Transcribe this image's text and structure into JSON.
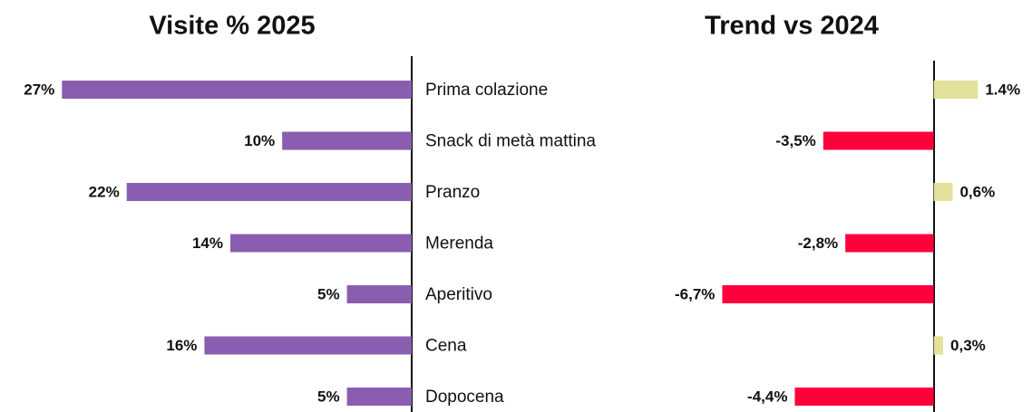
{
  "chart_data": [
    {
      "type": "bar",
      "title": "Visite % 2025",
      "categories": [
        "Prima colazione",
        "Snack di metà mattina",
        "Pranzo",
        "Merenda",
        "Aperitivo",
        "Cena",
        "Dopocena"
      ],
      "values": [
        27,
        10,
        22,
        14,
        5,
        16,
        5
      ],
      "value_labels": [
        "27%",
        "10%",
        "22%",
        "14%",
        "5%",
        "16%",
        "5%"
      ],
      "color": "#8b5db0",
      "xlim": [
        0,
        28
      ],
      "x_reversed": true
    },
    {
      "type": "bar",
      "title": "Trend vs 2024",
      "values": [
        1.4,
        -3.5,
        0.6,
        -2.8,
        -6.7,
        0.3,
        -4.4
      ],
      "value_labels": [
        "1.4%",
        "-3,5%",
        "0,6%",
        "-2,8%",
        "-6,7%",
        "0,3%",
        "-4,4%"
      ],
      "positive_color": "#e2e29a",
      "negative_color": "#ff003c",
      "xlim": [
        -7,
        3
      ]
    }
  ]
}
